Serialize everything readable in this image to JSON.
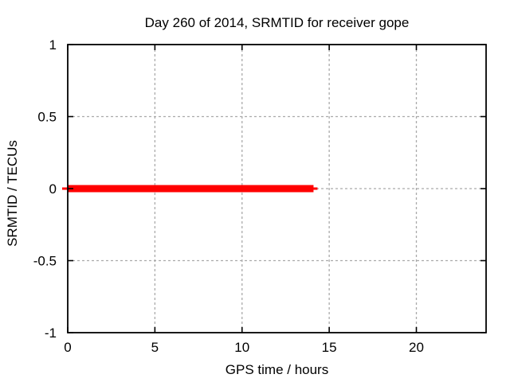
{
  "window": {
    "background_color": "#ffffff"
  },
  "colors": {
    "axis": "#000000",
    "text": "#000000",
    "grid": "#aaaaaa",
    "series_red": "#ff0000",
    "background": "#ffffff"
  },
  "chart_data": {
    "type": "line",
    "title": "Day 260 of 2014, SRMTID for receiver gope",
    "xlabel": "GPS time / hours",
    "ylabel": "SRMTID / TECUs",
    "xlim": [
      0,
      24
    ],
    "ylim": [
      -1,
      1
    ],
    "xticks": {
      "values": [
        0,
        5,
        10,
        15,
        20
      ],
      "labels": [
        "0",
        "5",
        "10",
        "15",
        "20"
      ]
    },
    "yticks": {
      "values": [
        1,
        0.5,
        0,
        -0.5,
        -1
      ],
      "labels": [
        "1",
        "0.5",
        "0",
        "-0.5",
        "-1"
      ]
    },
    "grid": true,
    "legend_position": "none",
    "series": [
      {
        "name": "SRMTID",
        "color": "#ff0000",
        "linewidth": 9,
        "x": [
          0,
          14.1
        ],
        "y": [
          0,
          0
        ],
        "description": "flat line at zero TECUs from hour 0 to about hour 14.1"
      }
    ]
  }
}
